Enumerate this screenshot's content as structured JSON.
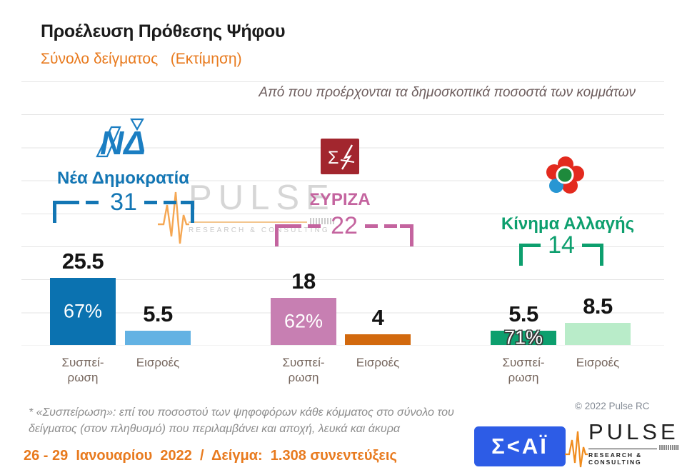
{
  "header": {
    "title": "Προέλευση Πρόθεσης Ψήφου",
    "subtitle": "Σύνολο δείγματος   (Εκτίμηση)",
    "question": "Από που προέρχονται τα δημοσκοπικά ποσοστά των κομμάτων"
  },
  "chart_data": {
    "type": "bar",
    "title": "Προέλευση Πρόθεσης Ψήφου",
    "subtitle": "Σύνολο δείγματος (Εκτίμηση)",
    "ylabel": "",
    "xlabel": "",
    "ylim": [
      0,
      100
    ],
    "grid": true,
    "gridline_step": 12.5,
    "xlabels": [
      "Συσπεί-\nρωση",
      "Εισροές"
    ],
    "groups": [
      {
        "party": "Νέα Δημοκρατία",
        "total": 31,
        "color": "#1376b4",
        "logo": "nd-logo",
        "bars": [
          {
            "category": "Συσπείρωση",
            "value": 25.5,
            "display": "25.5",
            "pct": "67%",
            "color": "#0b72b0"
          },
          {
            "category": "Εισροές",
            "value": 5.5,
            "display": "5.5",
            "pct": "",
            "color": "#63b2e3"
          }
        ]
      },
      {
        "party": "ΣΥΡΙΖΑ",
        "total": 22,
        "color": "#c4649f",
        "logo": "syriza-logo",
        "bars": [
          {
            "category": "Συσπείρωση",
            "value": 18,
            "display": "18",
            "pct": "62%",
            "color": "#c77fb2"
          },
          {
            "category": "Εισροές",
            "value": 4,
            "display": "4",
            "pct": "",
            "color": "#d2690e"
          }
        ]
      },
      {
        "party": "Κίνημα Αλλαγής",
        "total": 14,
        "color": "#0d9f6e",
        "logo": "kinal-logo",
        "bars": [
          {
            "category": "Συσπείρωση",
            "value": 5.5,
            "display": "5.5",
            "pct": "71%",
            "pct_outside": true,
            "color": "#0d9f6e"
          },
          {
            "category": "Εισροές",
            "value": 8.5,
            "display": "8.5",
            "pct": "",
            "color": "#b9ecc9"
          }
        ]
      }
    ]
  },
  "footnote": "*  «Συσπείρωση»: επί του ποσοστού των ψηφοφόρων κάθε κόμματος στο σύνολο του δείγματος (στον πληθυσμό) που περιλαμβάνει και αποχή, λευκά και άκυρα",
  "copyright": "© 2022 Pulse RC",
  "footer": "26 - 29  Ιανουαρίου  2022  /  Δείγμα:  1.308 συνεντεύξεις",
  "logos": {
    "skai_text": "Σ<ΑΪ",
    "pulse_text": "PULSE",
    "pulse_sub": "RESEARCH & CONSULTING"
  },
  "watermark": {
    "text": "PULSE",
    "sub": "RESEARCH & CONSULTING"
  }
}
